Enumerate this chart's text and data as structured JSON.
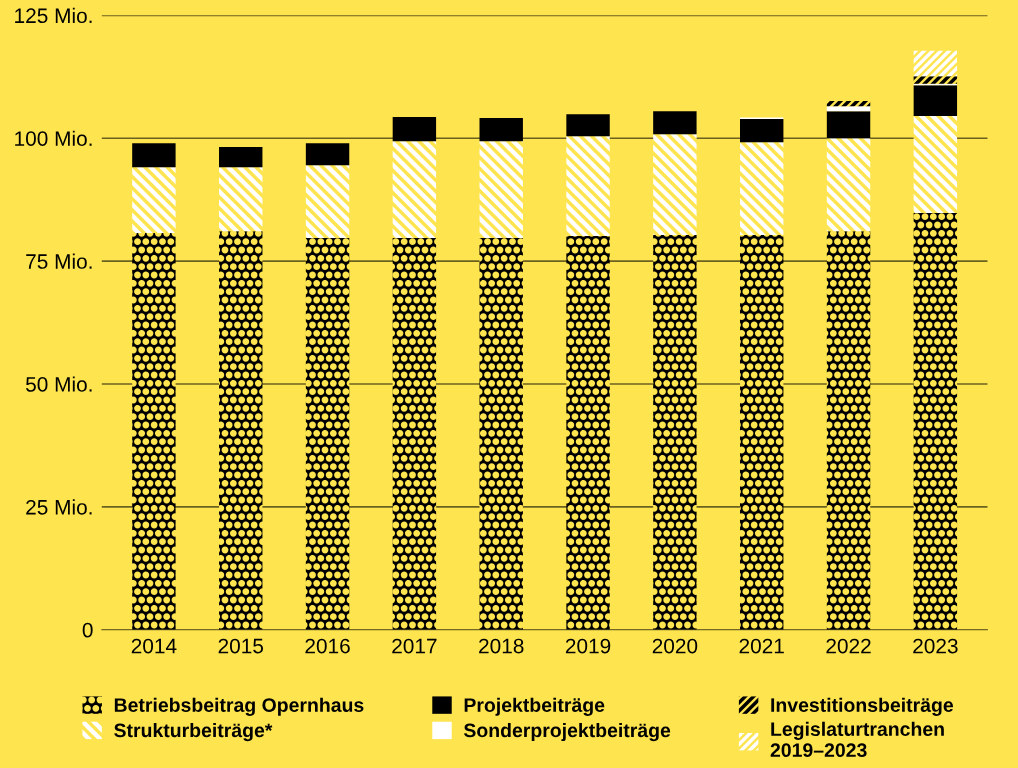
{
  "chart_data": {
    "type": "bar",
    "stacked": true,
    "categories": [
      "2014",
      "2015",
      "2016",
      "2017",
      "2018",
      "2019",
      "2020",
      "2021",
      "2022",
      "2023"
    ],
    "ylim": [
      0,
      125
    ],
    "yticks": [
      {
        "value": 0,
        "label": "0"
      },
      {
        "value": 25,
        "label": "25 Mio."
      },
      {
        "value": 50,
        "label": "50 Mio."
      },
      {
        "value": 75,
        "label": "75 Mio."
      },
      {
        "value": 100,
        "label": "100 Mio."
      },
      {
        "value": 125,
        "label": "125 Mio."
      }
    ],
    "grid": "y",
    "legend": "bottom",
    "series": [
      {
        "name": "Betriebsbeitrag Opernhaus",
        "color": "#000000",
        "values": [
          80.7,
          81.1,
          79.7,
          79.7,
          79.7,
          80.1,
          80.3,
          80.3,
          81.1,
          84.8
        ]
      },
      {
        "name": "Strukturbeiträge*",
        "color": "#ffffff",
        "values": [
          13.4,
          13.0,
          14.8,
          19.7,
          19.7,
          20.3,
          20.5,
          18.9,
          18.9,
          19.7
        ]
      },
      {
        "name": "Projektbeiträge",
        "color": "#000000",
        "values": [
          4.9,
          4.1,
          4.5,
          4.9,
          4.7,
          4.5,
          4.7,
          4.7,
          5.5,
          6.3
        ]
      },
      {
        "name": "Sonderprojektbeiträge",
        "color": "#ffffff",
        "values": [
          null,
          null,
          null,
          null,
          null,
          null,
          null,
          0.3,
          1.0,
          0.3
        ]
      },
      {
        "name": "Investitionsbeiträge",
        "color": "#000000",
        "values": [
          null,
          null,
          null,
          null,
          null,
          null,
          null,
          null,
          1.1,
          1.5
        ]
      },
      {
        "name": "Legislaturtranchen\n2019–2023",
        "color": "#ffffff",
        "values": [
          null,
          null,
          null,
          null,
          null,
          null,
          null,
          null,
          null,
          5.2
        ]
      }
    ]
  }
}
